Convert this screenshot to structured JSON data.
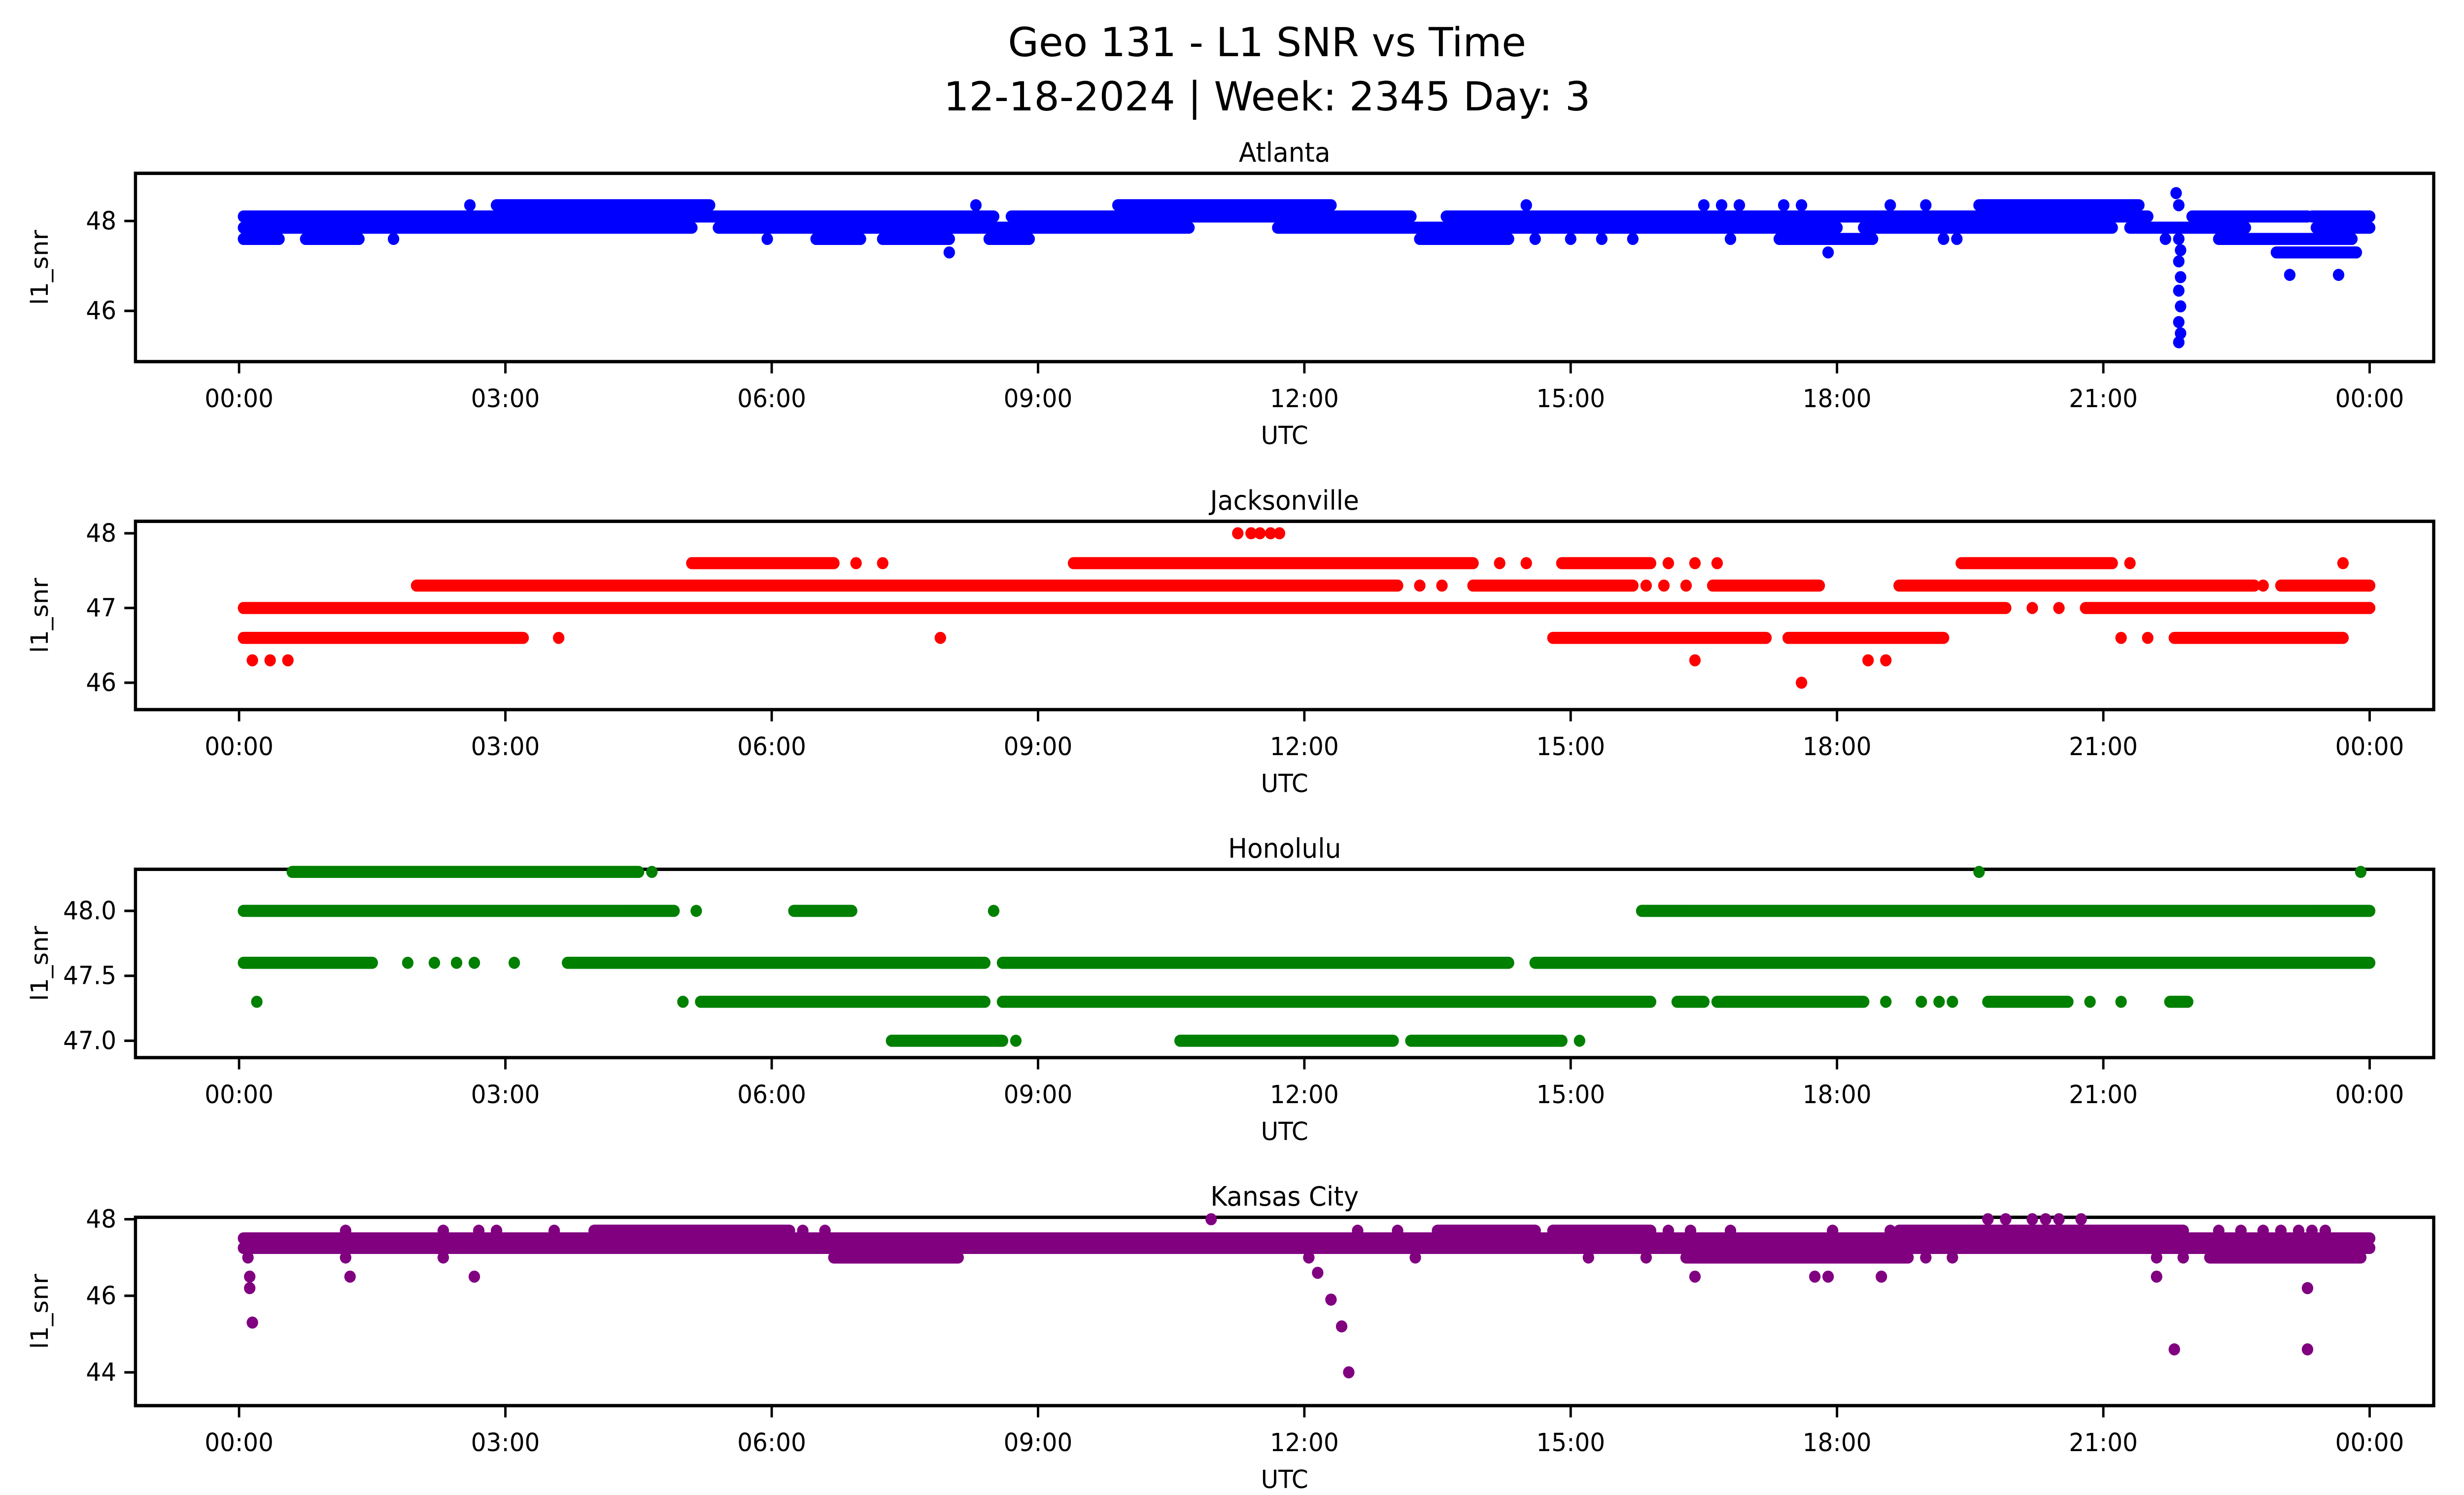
{
  "figure": {
    "title_line1": "Geo 131 - L1 SNR vs Time",
    "title_line2": "12-18-2024 | Week: 2345 Day: 3"
  },
  "axes": {
    "xlabel": "UTC",
    "ylabel": "l1_snr",
    "time_tick_labels": [
      "00:00",
      "03:00",
      "06:00",
      "09:00",
      "12:00",
      "15:00",
      "18:00",
      "21:00",
      "00:00"
    ],
    "time_tick_hours": [
      0,
      3,
      6,
      9,
      12,
      15,
      18,
      21,
      24
    ],
    "frame_color": "#000000",
    "background": "#ffffff"
  },
  "chart_data": [
    {
      "type": "scatter",
      "title": "Atlanta",
      "color": "#0000ff",
      "xlabel": "UTC",
      "ylabel": "l1_snr",
      "xlim_hours": [
        -1.17,
        24.72
      ],
      "ylim": [
        44.87,
        49.06
      ],
      "yticks": [
        {
          "v": 46,
          "label": "46"
        },
        {
          "v": 48,
          "label": "48"
        }
      ],
      "bands": [
        {
          "snr": 48.35,
          "segments": [
            [
              2.9,
              5.3
            ],
            [
              9.9,
              12.3
            ],
            [
              19.6,
              21.4
            ]
          ],
          "dots": [
            2.6,
            8.3,
            14.5,
            16.5,
            16.7,
            16.9,
            17.4,
            17.6,
            18.6,
            19.0
          ]
        },
        {
          "snr": 48.1,
          "segments": [
            [
              0.05,
              8.5
            ],
            [
              8.7,
              13.2
            ],
            [
              13.6,
              21.5
            ],
            [
              22.0,
              23.3
            ],
            [
              23.35,
              24
            ]
          ],
          "dots": []
        },
        {
          "snr": 47.85,
          "segments": [
            [
              0.05,
              5.1
            ],
            [
              5.4,
              10.7
            ],
            [
              11.7,
              18.0
            ],
            [
              18.3,
              21.1
            ],
            [
              21.3,
              22.6
            ],
            [
              23.4,
              24
            ]
          ],
          "dots": []
        },
        {
          "snr": 47.6,
          "segments": [
            [
              0.05,
              0.45
            ],
            [
              0.75,
              1.35
            ],
            [
              6.5,
              7.0
            ],
            [
              7.25,
              8.0
            ],
            [
              8.45,
              8.9
            ],
            [
              13.3,
              14.3
            ],
            [
              17.35,
              18.4
            ],
            [
              22.3,
              23.8
            ]
          ],
          "dots": [
            1.74,
            5.95,
            14.6,
            15.0,
            15.35,
            15.7,
            16.8,
            19.2,
            19.35,
            21.7
          ]
        },
        {
          "snr": 47.3,
          "segments": [
            [
              22.95,
              23.85
            ]
          ],
          "dots": [
            8.0,
            17.9
          ]
        },
        {
          "snr": 46.8,
          "segments": [],
          "dots": [
            23.1,
            23.65
          ]
        }
      ],
      "points": [
        [
          21.82,
          48.62
        ],
        [
          21.85,
          48.35
        ],
        [
          21.85,
          47.6
        ],
        [
          21.87,
          47.35
        ],
        [
          21.85,
          47.1
        ],
        [
          21.87,
          46.75
        ],
        [
          21.85,
          46.45
        ],
        [
          21.87,
          46.1
        ],
        [
          21.85,
          45.75
        ],
        [
          21.87,
          45.5
        ],
        [
          21.85,
          45.3
        ]
      ]
    },
    {
      "type": "scatter",
      "title": "Jacksonville",
      "color": "#ff0000",
      "xlabel": "UTC",
      "ylabel": "l1_snr",
      "xlim_hours": [
        -1.17,
        24.72
      ],
      "ylim": [
        45.64,
        48.16
      ],
      "yticks": [
        {
          "v": 46,
          "label": "46"
        },
        {
          "v": 47,
          "label": "47"
        },
        {
          "v": 48,
          "label": "48"
        }
      ],
      "bands": [
        {
          "snr": 48.0,
          "segments": [],
          "dots": [
            11.25,
            11.4,
            11.5,
            11.62,
            11.72
          ]
        },
        {
          "snr": 47.6,
          "segments": [
            [
              5.1,
              6.7
            ],
            [
              9.4,
              13.9
            ],
            [
              14.9,
              15.9
            ],
            [
              19.4,
              21.1
            ]
          ],
          "dots": [
            6.95,
            7.25,
            14.2,
            14.5,
            16.1,
            16.4,
            16.65,
            21.3,
            23.7
          ]
        },
        {
          "snr": 47.3,
          "segments": [
            [
              2.0,
              13.05
            ],
            [
              13.9,
              15.7
            ],
            [
              16.6,
              17.8
            ],
            [
              18.7,
              22.7
            ],
            [
              23.0,
              24
            ]
          ],
          "dots": [
            13.3,
            13.55,
            15.85,
            16.05,
            16.3,
            22.8
          ]
        },
        {
          "snr": 47.0,
          "segments": [
            [
              0.05,
              19.9
            ],
            [
              20.8,
              24
            ]
          ],
          "dots": [
            20.2,
            20.5
          ]
        },
        {
          "snr": 46.6,
          "segments": [
            [
              0.05,
              3.2
            ],
            [
              14.8,
              17.2
            ],
            [
              17.45,
              19.2
            ],
            [
              21.8,
              23.7
            ]
          ],
          "dots": [
            3.6,
            7.9,
            21.2,
            21.5
          ]
        },
        {
          "snr": 46.3,
          "segments": [],
          "dots": [
            0.15,
            0.35,
            0.55,
            16.4,
            18.35,
            18.55
          ]
        },
        {
          "snr": 46.0,
          "segments": [],
          "dots": [
            17.6
          ]
        }
      ],
      "points": []
    },
    {
      "type": "scatter",
      "title": "Honolulu",
      "color": "#008000",
      "xlabel": "UTC",
      "ylabel": "l1_snr",
      "xlim_hours": [
        -1.17,
        24.72
      ],
      "ylim": [
        46.87,
        48.32
      ],
      "yticks": [
        {
          "v": 47.0,
          "label": "47.0"
        },
        {
          "v": 47.5,
          "label": "47.5"
        },
        {
          "v": 48.0,
          "label": "48.0"
        }
      ],
      "bands": [
        {
          "snr": 48.3,
          "segments": [
            [
              0.6,
              4.5
            ]
          ],
          "dots": [
            4.65,
            19.6,
            23.9
          ]
        },
        {
          "snr": 48.0,
          "segments": [
            [
              0.05,
              4.9
            ],
            [
              6.25,
              6.9
            ],
            [
              15.8,
              24
            ]
          ],
          "dots": [
            5.15,
            8.5
          ]
        },
        {
          "snr": 47.6,
          "segments": [
            [
              0.05,
              1.5
            ],
            [
              3.7,
              8.4
            ],
            [
              8.6,
              14.3
            ],
            [
              14.6,
              24
            ]
          ],
          "dots": [
            1.9,
            2.2,
            2.45,
            2.65,
            3.1
          ]
        },
        {
          "snr": 47.3,
          "segments": [
            [
              5.2,
              8.4
            ],
            [
              8.6,
              15.9
            ],
            [
              16.2,
              16.5
            ],
            [
              16.65,
              18.3
            ],
            [
              19.7,
              20.6
            ],
            [
              21.75,
              21.95
            ]
          ],
          "dots": [
            0.2,
            5.0,
            18.55,
            18.95,
            19.15,
            19.3,
            20.85,
            21.2
          ]
        },
        {
          "snr": 47.0,
          "segments": [
            [
              7.35,
              8.6
            ],
            [
              10.6,
              13.0
            ],
            [
              13.2,
              14.9
            ]
          ],
          "dots": [
            8.75,
            15.1
          ]
        }
      ],
      "points": []
    },
    {
      "type": "scatter",
      "title": "Kansas City",
      "color": "#800080",
      "xlabel": "UTC",
      "ylabel": "l1_snr",
      "xlim_hours": [
        -1.17,
        24.72
      ],
      "ylim": [
        43.13,
        48.05
      ],
      "yticks": [
        {
          "v": 44,
          "label": "44"
        },
        {
          "v": 46,
          "label": "46"
        },
        {
          "v": 48,
          "label": "48"
        }
      ],
      "bands": [
        {
          "snr": 48.0,
          "segments": [],
          "dots": [
            10.95,
            19.7,
            19.9,
            20.2,
            20.35,
            20.5,
            20.75
          ]
        },
        {
          "snr": 47.7,
          "segments": [
            [
              4.0,
              6.2
            ],
            [
              13.5,
              14.6
            ],
            [
              14.8,
              15.9
            ],
            [
              18.7,
              21.9
            ]
          ],
          "dots": [
            1.2,
            2.3,
            2.7,
            2.9,
            3.55,
            6.35,
            6.6,
            12.6,
            13.05,
            16.1,
            16.35,
            16.8,
            17.95,
            18.6,
            22.3,
            22.55,
            22.8,
            23.0,
            23.2,
            23.35,
            23.5
          ]
        },
        {
          "snr": 47.5,
          "segments": [
            [
              0.05,
              24
            ]
          ],
          "dots": []
        },
        {
          "snr": 47.25,
          "segments": [
            [
              0.05,
              24
            ]
          ],
          "dots": []
        },
        {
          "snr": 47.0,
          "segments": [
            [
              6.7,
              8.1
            ],
            [
              16.3,
              18.8
            ],
            [
              22.2,
              23.9
            ]
          ],
          "dots": [
            0.1,
            1.2,
            2.3,
            12.05,
            13.25,
            15.2,
            15.85,
            19.0,
            19.3,
            21.6,
            21.9
          ]
        },
        {
          "snr": 46.5,
          "segments": [],
          "dots": [
            0.12,
            1.25,
            2.65,
            16.4,
            17.75,
            17.9,
            18.5,
            21.6
          ]
        },
        {
          "snr": 46.2,
          "segments": [],
          "dots": [
            0.12,
            23.3
          ]
        },
        {
          "snr": 45.3,
          "segments": [],
          "dots": [
            0.15
          ]
        },
        {
          "snr": 44.6,
          "segments": [],
          "dots": [
            21.8,
            23.3
          ]
        }
      ],
      "points": [
        [
          12.15,
          46.6
        ],
        [
          12.3,
          45.9
        ],
        [
          12.42,
          45.2
        ],
        [
          12.5,
          44.0
        ]
      ]
    }
  ],
  "layout": {
    "design_width": 1546,
    "block_tops_pct": [
      9.22,
      32.51,
      55.79,
      79.08
    ],
    "block_heights_pct": [
      23.28,
      23.28,
      23.28,
      20.92
    ],
    "block_viewbox_heights": [
      207,
      207,
      207,
      186
    ]
  }
}
